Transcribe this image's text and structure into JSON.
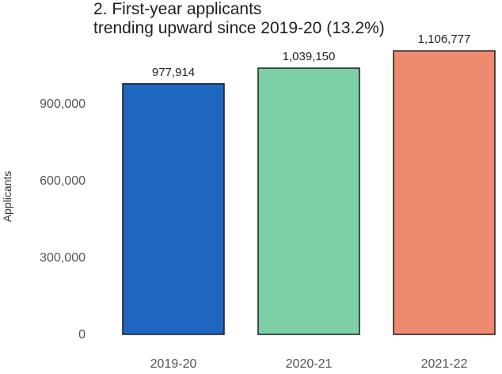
{
  "chart_data": {
    "type": "bar",
    "title": [
      "2. First-year applicants",
      "trending upward since 2019-20 (13.2%)"
    ],
    "xlabel": "",
    "ylabel": "Applicants",
    "categories": [
      "2019-20",
      "2020-21",
      "2021-22"
    ],
    "values": [
      977914,
      1039150,
      1106777
    ],
    "value_labels": [
      "977,914",
      "1,039,150",
      "1,106,777"
    ],
    "colors": [
      "#1f66c0",
      "#7dd0a6",
      "#ee8a6f"
    ],
    "ylim": [
      0,
      1150000
    ],
    "yticks": [
      0,
      300000,
      600000,
      900000
    ],
    "ytick_labels": [
      "0",
      "300,000",
      "600,000",
      "900,000"
    ],
    "grid": false,
    "legend": "none"
  }
}
